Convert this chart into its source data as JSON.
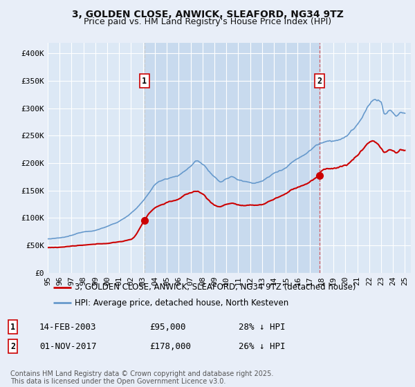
{
  "title": "3, GOLDEN CLOSE, ANWICK, SLEAFORD, NG34 9TZ",
  "subtitle": "Price paid vs. HM Land Registry's House Price Index (HPI)",
  "legend_label_red": "3, GOLDEN CLOSE, ANWICK, SLEAFORD, NG34 9TZ (detached house)",
  "legend_label_blue": "HPI: Average price, detached house, North Kesteven",
  "marker1_date": "14-FEB-2003",
  "marker1_price": "£95,000",
  "marker1_hpi": "28% ↓ HPI",
  "marker1_x": 2003.12,
  "marker1_y_red": 95000,
  "marker2_date": "01-NOV-2017",
  "marker2_price": "£178,000",
  "marker2_hpi": "26% ↓ HPI",
  "marker2_x": 2017.83,
  "marker2_y_red": 178000,
  "footer": "Contains HM Land Registry data © Crown copyright and database right 2025.\nThis data is licensed under the Open Government Licence v3.0.",
  "ylim": [
    0,
    420000
  ],
  "xlim_start": 1995.0,
  "xlim_end": 2025.5,
  "yticks": [
    0,
    50000,
    100000,
    150000,
    200000,
    250000,
    300000,
    350000,
    400000
  ],
  "ytick_labels": [
    "£0",
    "£50K",
    "£100K",
    "£150K",
    "£200K",
    "£250K",
    "£300K",
    "£350K",
    "£400K"
  ],
  "background_color": "#e8eef8",
  "plot_bg_color": "#dce8f5",
  "highlight_bg_color": "#c8daee",
  "grid_color": "#ffffff",
  "red_color": "#cc0000",
  "blue_color": "#6699cc",
  "dashed_line_color": "#cccccc",
  "dashed_line_color2": "#cc0000",
  "title_fontsize": 10,
  "subtitle_fontsize": 9,
  "tick_fontsize": 8,
  "legend_fontsize": 8.5,
  "footer_fontsize": 7,
  "annotation_fontsize": 9
}
